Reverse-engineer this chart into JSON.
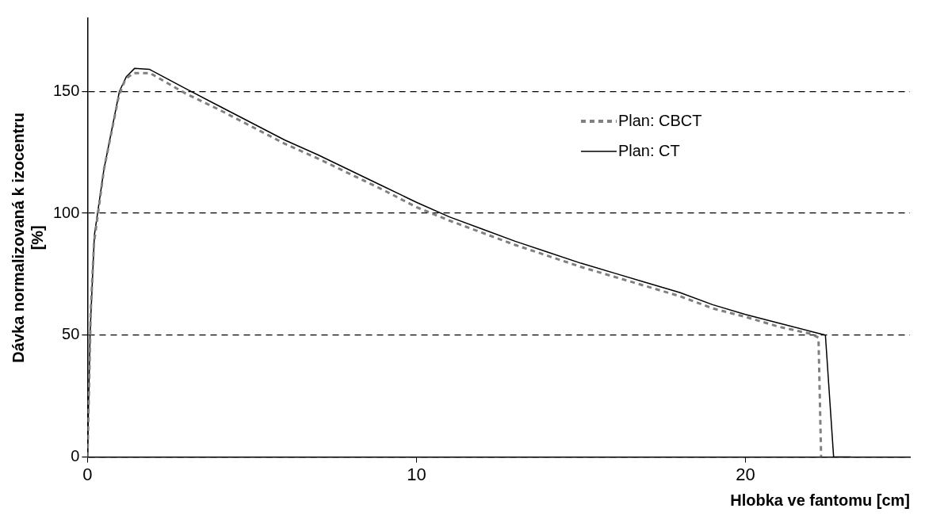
{
  "chart_data": {
    "type": "line",
    "xlabel": "Hlobka ve fantomu [cm]",
    "ylabel": "Dávka normalizovaná k izocentru [%]",
    "xlim": [
      0,
      25
    ],
    "ylim": [
      0,
      180
    ],
    "xticks": [
      0,
      10,
      20
    ],
    "yticks": [
      0,
      50,
      100,
      150
    ],
    "grid": "y",
    "legend": "top right",
    "marker": "none",
    "series": [
      {
        "name": "Plan: CBCT",
        "color": "#808080",
        "line_style": "dashed",
        "x": [
          0,
          0.05,
          0.1,
          0.2,
          0.5,
          0.95,
          1.15,
          1.4,
          1.9,
          3,
          4,
          5,
          6,
          7,
          8,
          9,
          10,
          11,
          12,
          13,
          14,
          15,
          16,
          17,
          18,
          19,
          20,
          21,
          22,
          22.22,
          22.3
        ],
        "values": [
          0,
          30,
          60,
          88,
          118,
          148,
          155,
          157.5,
          157.5,
          149,
          142.5,
          135.5,
          128.5,
          122.5,
          116,
          109.5,
          102.5,
          97,
          92,
          87,
          82.5,
          78,
          74,
          70,
          66,
          61,
          57.5,
          53.5,
          50.5,
          49,
          0
        ]
      },
      {
        "name": "Plan: CT",
        "color": "#000000",
        "line_style": "solid",
        "x": [
          0,
          0.08,
          0.21,
          0.5,
          0.97,
          1.18,
          1.43,
          1.89,
          3,
          4,
          5,
          6,
          7,
          8,
          9,
          10,
          11,
          12,
          13,
          14,
          15,
          16,
          17,
          18,
          19,
          20,
          21,
          22,
          22.43,
          22.68,
          23.2
        ],
        "values": [
          0,
          51,
          91,
          118,
          150,
          156,
          159.4,
          159,
          151,
          144,
          137,
          130,
          124,
          117.5,
          111,
          104.5,
          98.5,
          93.5,
          88.5,
          84,
          79.5,
          75.5,
          71.5,
          67.5,
          62.5,
          58.5,
          55,
          51.5,
          50,
          0,
          0
        ]
      }
    ]
  }
}
